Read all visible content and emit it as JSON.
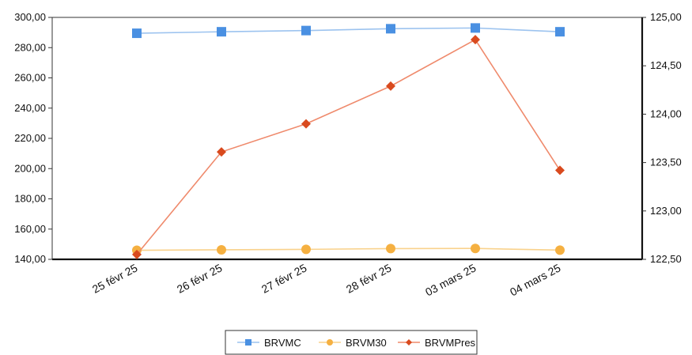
{
  "chart_data": {
    "type": "line",
    "categories": [
      "25 févr 25",
      "26 févr 25",
      "27 févr 25",
      "28 févr 25",
      "03 mars 25",
      "04 mars 25"
    ],
    "y_left": {
      "range": [
        140,
        300
      ],
      "ticks": [
        140,
        160,
        180,
        200,
        220,
        240,
        260,
        280,
        300
      ],
      "tick_labels": [
        "140,00",
        "160,00",
        "180,00",
        "200,00",
        "220,00",
        "240,00",
        "260,00",
        "280,00",
        "300,00"
      ]
    },
    "y_right": {
      "range": [
        122.5,
        125
      ],
      "ticks": [
        122.5,
        123,
        123.5,
        124,
        124.5,
        125
      ],
      "tick_labels": [
        "122,50",
        "123,00",
        "123,50",
        "124,00",
        "124,50",
        "125,00"
      ]
    },
    "series": [
      {
        "name": "BRVMC",
        "axis": "left",
        "color": "#4a90e2",
        "line_color": "#9cc3ef",
        "marker": "square",
        "values": [
          289.5,
          290.5,
          291.3,
          292.5,
          293.0,
          290.5
        ]
      },
      {
        "name": "BRVM30",
        "axis": "left",
        "color": "#f5b041",
        "line_color": "#f9d28c",
        "marker": "circle",
        "values": [
          146.0,
          146.3,
          146.6,
          147.1,
          147.2,
          146.1
        ]
      },
      {
        "name": "BRVMPres",
        "axis": "right",
        "color": "#d94a1e",
        "line_color": "#ef8a6c",
        "marker": "diamond",
        "values": [
          122.55,
          123.61,
          123.9,
          124.29,
          124.77,
          123.42
        ]
      }
    ],
    "grid": false,
    "legend_position": "bottom"
  }
}
